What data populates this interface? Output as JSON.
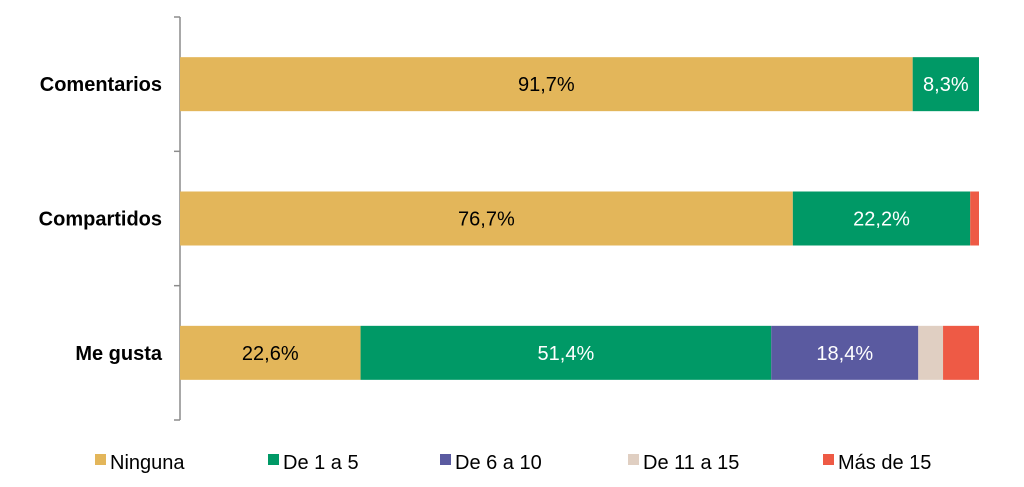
{
  "chart_data": {
    "type": "bar",
    "orientation": "horizontal",
    "stacked": true,
    "normalized": true,
    "categories": [
      "Comentarios",
      "Compartidos",
      "Me gusta"
    ],
    "series": [
      {
        "name": "Ninguna",
        "color": "#E3B65A",
        "values": [
          91.7,
          76.7,
          22.6
        ],
        "labels": [
          "91,7%",
          "76,7%",
          "22,6%"
        ],
        "label_color": "#000000"
      },
      {
        "name": "De 1 a 5",
        "color": "#009966",
        "values": [
          8.3,
          22.2,
          51.4
        ],
        "labels": [
          "8,3%",
          "22,2%",
          "51,4%"
        ],
        "label_color": "#ffffff"
      },
      {
        "name": "De 6 a 10",
        "color": "#5A5AA0",
        "values": [
          0,
          0,
          18.4
        ],
        "labels": [
          "",
          "",
          "18,4%"
        ],
        "label_color": "#ffffff"
      },
      {
        "name": "De 11 a 15",
        "color": "#E0CFC2",
        "values": [
          0,
          0,
          3.1
        ],
        "labels": [
          "",
          "",
          ""
        ],
        "label_color": "#000000"
      },
      {
        "name": "Más de 15",
        "color": "#EE5A45",
        "values": [
          0,
          1.1,
          4.5
        ],
        "labels": [
          "",
          "",
          ""
        ],
        "label_color": "#ffffff"
      }
    ],
    "xlim": [
      0,
      100
    ],
    "grid": false,
    "legend": "bottom"
  }
}
